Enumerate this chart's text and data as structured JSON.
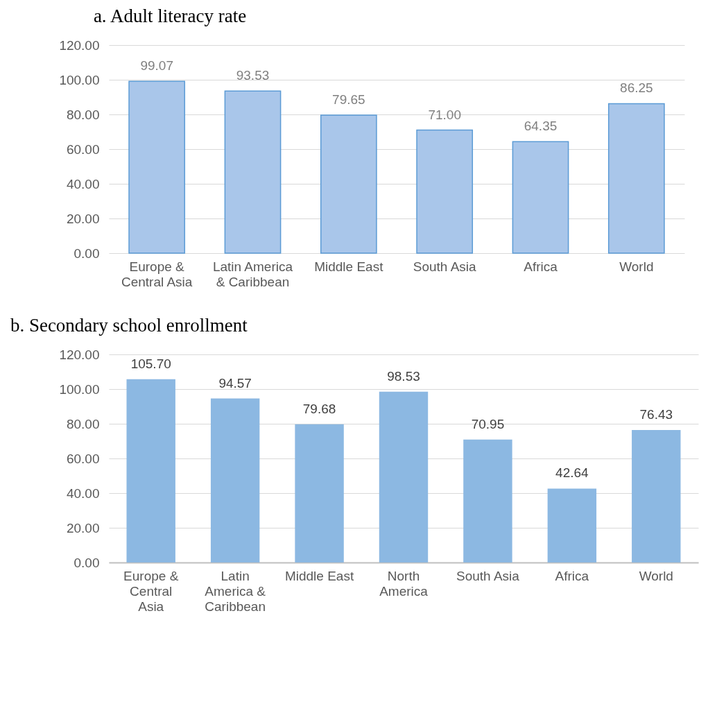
{
  "chart_data": [
    {
      "type": "bar",
      "title": "a.   Adult literacy rate",
      "categories": [
        "Europe & Central Asia",
        "Latin America & Caribbean",
        "Middle East",
        "South Asia",
        "Africa",
        "World"
      ],
      "values": [
        99.07,
        93.53,
        79.65,
        71.0,
        64.35,
        86.25
      ],
      "value_labels": [
        "99.07",
        "93.53",
        "79.65",
        "71.00",
        "64.35",
        "86.25"
      ],
      "color": "#a9c6ea",
      "ylim": [
        0,
        120
      ],
      "yticks": [
        {
          "value": 0,
          "label": "0.00"
        },
        {
          "value": 20,
          "label": "20.00"
        },
        {
          "value": 40,
          "label": "40.00"
        },
        {
          "value": 60,
          "label": "60.00"
        },
        {
          "value": 80,
          "label": "80.00"
        },
        {
          "value": 100,
          "label": "100.00"
        },
        {
          "value": 120,
          "label": "120.00"
        }
      ],
      "grid": "y"
    },
    {
      "type": "bar",
      "title": "b. Secondary school enrollment",
      "categories": [
        "Europe & Central Asia",
        "Latin America & Caribbean",
        "Middle East",
        "North America",
        "South Asia",
        "Africa",
        "World"
      ],
      "values": [
        105.7,
        94.57,
        79.68,
        98.53,
        70.95,
        42.64,
        76.43
      ],
      "value_labels": [
        "105.70",
        "94.57",
        "79.68",
        "98.53",
        "70.95",
        "42.64",
        "76.43"
      ],
      "color": "#8cb8e2",
      "ylim": [
        0,
        120
      ],
      "yticks": [
        {
          "value": 0,
          "label": "0.00"
        },
        {
          "value": 20,
          "label": "20.00"
        },
        {
          "value": 40,
          "label": "40.00"
        },
        {
          "value": 60,
          "label": "60.00"
        },
        {
          "value": 80,
          "label": "80.00"
        },
        {
          "value": 100,
          "label": "100.00"
        },
        {
          "value": 120,
          "label": "120.00"
        }
      ],
      "grid": "y"
    }
  ]
}
